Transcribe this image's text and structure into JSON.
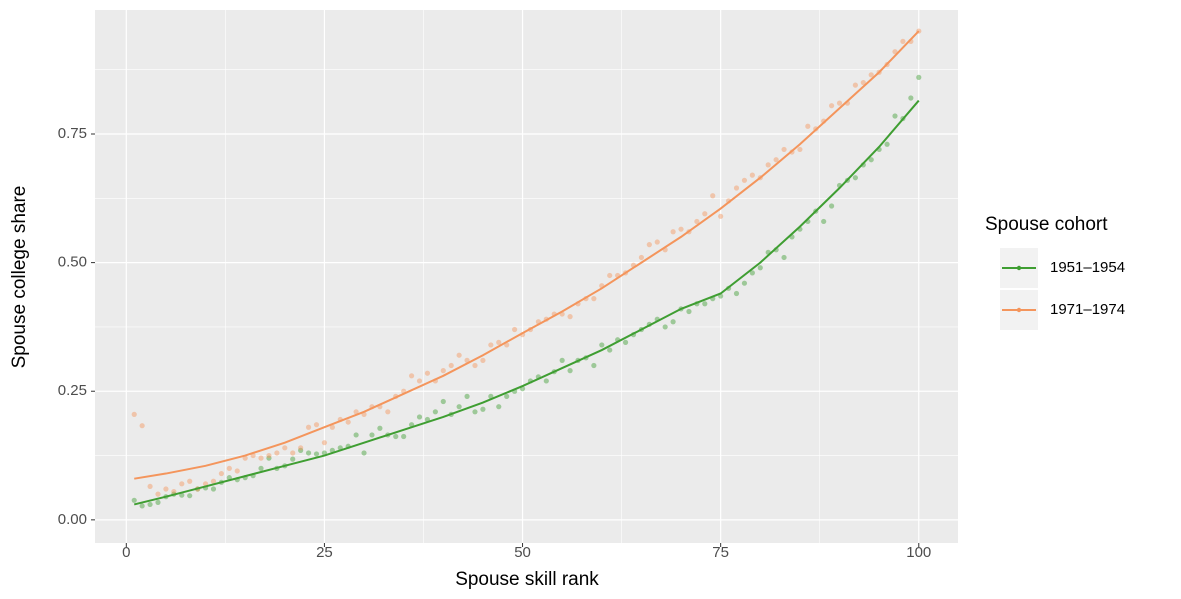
{
  "chart_data": {
    "type": "scatter",
    "x_label": "Spouse skill rank",
    "y_label": "Spouse college share",
    "legend_title": "Spouse cohort",
    "x": [
      1,
      2,
      3,
      4,
      5,
      6,
      7,
      8,
      9,
      10,
      11,
      12,
      13,
      14,
      15,
      16,
      17,
      18,
      19,
      20,
      21,
      22,
      23,
      24,
      25,
      26,
      27,
      28,
      29,
      30,
      31,
      32,
      33,
      34,
      35,
      36,
      37,
      38,
      39,
      40,
      41,
      42,
      43,
      44,
      45,
      46,
      47,
      48,
      49,
      50,
      51,
      52,
      53,
      54,
      55,
      56,
      57,
      58,
      59,
      60,
      61,
      62,
      63,
      64,
      65,
      66,
      67,
      68,
      69,
      70,
      71,
      72,
      73,
      74,
      75,
      76,
      77,
      78,
      79,
      80,
      81,
      82,
      83,
      84,
      85,
      86,
      87,
      88,
      89,
      90,
      91,
      92,
      93,
      94,
      95,
      96,
      97,
      98,
      99,
      100
    ],
    "fit_x": [
      1,
      5,
      10,
      15,
      20,
      25,
      30,
      35,
      40,
      45,
      50,
      55,
      60,
      65,
      70,
      75,
      80,
      85,
      90,
      95,
      100
    ],
    "series": [
      {
        "name": "1951–1954",
        "color": "#3f9e32",
        "values": [
          0.038,
          0.027,
          0.03,
          0.034,
          0.045,
          0.05,
          0.048,
          0.047,
          0.06,
          0.062,
          0.06,
          0.073,
          0.082,
          0.078,
          0.082,
          0.086,
          0.1,
          0.12,
          0.1,
          0.105,
          0.118,
          0.135,
          0.13,
          0.128,
          0.13,
          0.135,
          0.14,
          0.143,
          0.165,
          0.13,
          0.165,
          0.178,
          0.165,
          0.162,
          0.162,
          0.185,
          0.2,
          0.195,
          0.21,
          0.23,
          0.205,
          0.22,
          0.24,
          0.21,
          0.215,
          0.24,
          0.22,
          0.24,
          0.25,
          0.255,
          0.27,
          0.278,
          0.27,
          0.288,
          0.31,
          0.29,
          0.31,
          0.315,
          0.3,
          0.34,
          0.33,
          0.35,
          0.345,
          0.36,
          0.37,
          0.38,
          0.39,
          0.375,
          0.385,
          0.41,
          0.405,
          0.42,
          0.42,
          0.43,
          0.435,
          0.45,
          0.44,
          0.46,
          0.48,
          0.49,
          0.52,
          0.525,
          0.51,
          0.55,
          0.565,
          0.58,
          0.6,
          0.58,
          0.61,
          0.65,
          0.66,
          0.665,
          0.69,
          0.7,
          0.72,
          0.73,
          0.785,
          0.78,
          0.82,
          0.86
        ],
        "fit_values": [
          0.03,
          0.045,
          0.065,
          0.085,
          0.105,
          0.125,
          0.15,
          0.175,
          0.2,
          0.228,
          0.26,
          0.295,
          0.33,
          0.37,
          0.41,
          0.44,
          0.5,
          0.57,
          0.645,
          0.725,
          0.815
        ]
      },
      {
        "name": "1971–1974",
        "color": "#f4955c",
        "values": [
          0.205,
          0.183,
          0.065,
          0.05,
          0.06,
          0.055,
          0.07,
          0.075,
          0.06,
          0.07,
          0.075,
          0.09,
          0.1,
          0.095,
          0.12,
          0.125,
          0.12,
          0.125,
          0.13,
          0.14,
          0.13,
          0.14,
          0.18,
          0.185,
          0.15,
          0.18,
          0.195,
          0.19,
          0.21,
          0.205,
          0.22,
          0.22,
          0.21,
          0.24,
          0.25,
          0.28,
          0.27,
          0.285,
          0.27,
          0.29,
          0.3,
          0.32,
          0.31,
          0.3,
          0.31,
          0.34,
          0.345,
          0.34,
          0.37,
          0.36,
          0.37,
          0.385,
          0.39,
          0.4,
          0.4,
          0.395,
          0.42,
          0.43,
          0.43,
          0.455,
          0.475,
          0.475,
          0.48,
          0.495,
          0.51,
          0.535,
          0.54,
          0.525,
          0.56,
          0.565,
          0.56,
          0.58,
          0.595,
          0.63,
          0.59,
          0.62,
          0.645,
          0.66,
          0.67,
          0.665,
          0.69,
          0.7,
          0.72,
          0.715,
          0.72,
          0.765,
          0.76,
          0.775,
          0.805,
          0.81,
          0.81,
          0.845,
          0.85,
          0.865,
          0.87,
          0.885,
          0.91,
          0.93,
          0.93,
          0.95
        ],
        "fit_values": [
          0.08,
          0.09,
          0.105,
          0.125,
          0.15,
          0.18,
          0.21,
          0.245,
          0.28,
          0.32,
          0.363,
          0.405,
          0.45,
          0.5,
          0.55,
          0.605,
          0.665,
          0.73,
          0.8,
          0.87,
          0.95
        ]
      }
    ],
    "xlim": [
      -3.95,
      104.95
    ],
    "xticks": [
      0,
      25,
      50,
      75,
      100
    ],
    "ylim": [
      -0.045,
      0.991
    ],
    "yticks": [
      {
        "value": 0,
        "label": "0.00"
      },
      {
        "value": 0.25,
        "label": "0.25"
      },
      {
        "value": 0.5,
        "label": "0.50"
      },
      {
        "value": 0.75,
        "label": "0.75"
      }
    ],
    "grid": true,
    "legend": "right"
  }
}
